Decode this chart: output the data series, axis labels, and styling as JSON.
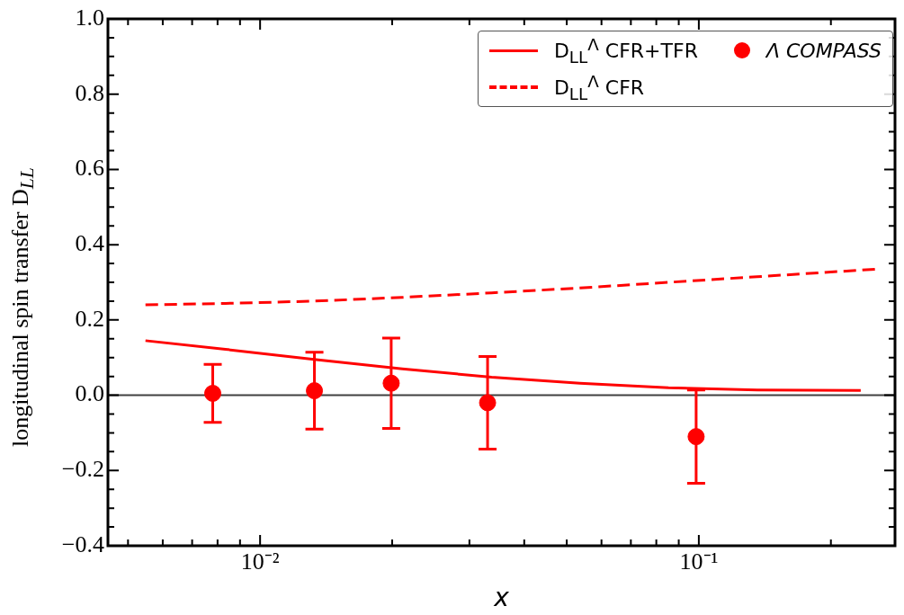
{
  "chart_data": {
    "type": "scatter",
    "xlabel": "x",
    "ylabel": "longitudinal spin transfer D$_{LL}$",
    "log": "x",
    "xlim": [
      0.0045,
      0.28
    ],
    "ylim": [
      -0.4,
      1.0
    ],
    "xticks": [
      {
        "value": 0.005,
        "label": null
      },
      {
        "value": 0.006,
        "label": null
      },
      {
        "value": 0.007,
        "label": null
      },
      {
        "value": 0.008,
        "label": null
      },
      {
        "value": 0.009,
        "label": null
      },
      {
        "value": 0.01,
        "label": "10⁻²"
      },
      {
        "value": 0.02,
        "label": null
      },
      {
        "value": 0.03,
        "label": null
      },
      {
        "value": 0.04,
        "label": null
      },
      {
        "value": 0.05,
        "label": null
      },
      {
        "value": 0.06,
        "label": null
      },
      {
        "value": 0.07,
        "label": null
      },
      {
        "value": 0.08,
        "label": null
      },
      {
        "value": 0.09,
        "label": null
      },
      {
        "value": 0.1,
        "label": "10⁻¹"
      },
      {
        "value": 0.2,
        "label": null
      }
    ],
    "yticks": [
      {
        "value": -0.4,
        "label": "−0.4"
      },
      {
        "value": -0.2,
        "label": "−0.2"
      },
      {
        "value": 0.0,
        "label": "0.0"
      },
      {
        "value": 0.2,
        "label": "0.2"
      },
      {
        "value": 0.4,
        "label": "0.4"
      },
      {
        "value": 0.6,
        "label": "0.6"
      },
      {
        "value": 0.8,
        "label": "0.8"
      },
      {
        "value": 1.0,
        "label": "1.0"
      }
    ],
    "series": [
      {
        "name": "D$_{LL}$$^{Λ}$ CFR+TFR",
        "type": "line",
        "color": "#ff0000",
        "line_style": "solid",
        "marker": "none",
        "x": [
          0.00548,
          0.00834,
          0.01328,
          0.0211,
          0.0337,
          0.0536,
          0.0853,
          0.1359,
          0.2339
        ],
        "values": [
          0.145,
          0.122,
          0.095,
          0.07,
          0.048,
          0.032,
          0.02,
          0.014,
          0.013
        ]
      },
      {
        "name": "D$_{LL}$$^{Λ}$ CFR",
        "type": "line",
        "color": "#ff0000",
        "line_style": "dashed",
        "marker": "none",
        "x": [
          0.00548,
          0.00834,
          0.01328,
          0.0211,
          0.0337,
          0.0536,
          0.0853,
          0.1359,
          0.2544
        ],
        "values": [
          0.24,
          0.244,
          0.25,
          0.26,
          0.272,
          0.285,
          0.3,
          0.315,
          0.335
        ]
      },
      {
        "name": "Λ COMPASS",
        "type": "scatter",
        "color": "#ff0000",
        "marker": "circle",
        "x": [
          0.0078,
          0.0133,
          0.0199,
          0.033,
          0.0986
        ],
        "values": [
          0.005,
          0.012,
          0.032,
          -0.02,
          -0.11
        ],
        "errors": [
          0.077,
          0.102,
          0.12,
          0.123,
          0.124
        ]
      }
    ],
    "ref_lines": [
      {
        "axis": "y",
        "value": 0,
        "color": "#404040"
      }
    ],
    "legend": "top right",
    "grid": false
  }
}
